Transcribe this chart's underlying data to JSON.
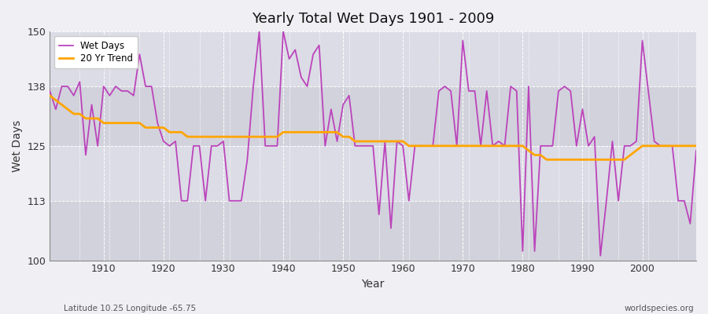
{
  "title": "Yearly Total Wet Days 1901 - 2009",
  "xlabel": "Year",
  "ylabel": "Wet Days",
  "footnote_left": "Latitude 10.25 Longitude -65.75",
  "footnote_right": "worldspecies.org",
  "ylim": [
    100,
    150
  ],
  "xlim": [
    1901,
    2009
  ],
  "yticks": [
    100,
    113,
    125,
    138,
    150
  ],
  "xticks": [
    1910,
    1920,
    1930,
    1940,
    1950,
    1960,
    1970,
    1980,
    1990,
    2000
  ],
  "wet_days_color": "#BB44BB",
  "trend_color": "#FFA500",
  "plot_bg_color": "#EAEAEE",
  "band_color_light": "#E0E0E8",
  "band_color_dark": "#D0D0DC",
  "fig_bg_color": "#F0F0F4",
  "grid_color": "#FFFFFF",
  "legend_labels": [
    "Wet Days",
    "20 Yr Trend"
  ],
  "years": [
    1901,
    1902,
    1903,
    1904,
    1905,
    1906,
    1907,
    1908,
    1909,
    1910,
    1911,
    1912,
    1913,
    1914,
    1915,
    1916,
    1917,
    1918,
    1919,
    1920,
    1921,
    1922,
    1923,
    1924,
    1925,
    1926,
    1927,
    1928,
    1929,
    1930,
    1931,
    1932,
    1933,
    1934,
    1935,
    1936,
    1937,
    1938,
    1939,
    1940,
    1941,
    1942,
    1943,
    1944,
    1945,
    1946,
    1947,
    1948,
    1949,
    1950,
    1951,
    1952,
    1953,
    1954,
    1955,
    1956,
    1957,
    1958,
    1959,
    1960,
    1961,
    1962,
    1963,
    1964,
    1965,
    1966,
    1967,
    1968,
    1969,
    1970,
    1971,
    1972,
    1973,
    1974,
    1975,
    1976,
    1977,
    1978,
    1979,
    1980,
    1981,
    1982,
    1983,
    1984,
    1985,
    1986,
    1987,
    1988,
    1989,
    1990,
    1991,
    1992,
    1993,
    1994,
    1995,
    1996,
    1997,
    1998,
    1999,
    2000,
    2001,
    2002,
    2003,
    2004,
    2005,
    2006,
    2007,
    2008,
    2009
  ],
  "wet_days": [
    137,
    133,
    138,
    138,
    136,
    139,
    123,
    134,
    125,
    138,
    136,
    138,
    137,
    137,
    136,
    145,
    138,
    138,
    130,
    126,
    125,
    126,
    113,
    113,
    125,
    125,
    113,
    125,
    125,
    126,
    113,
    113,
    113,
    122,
    138,
    150,
    125,
    125,
    125,
    150,
    144,
    146,
    140,
    138,
    145,
    147,
    125,
    133,
    126,
    134,
    136,
    125,
    125,
    125,
    125,
    110,
    126,
    107,
    126,
    125,
    113,
    125,
    125,
    125,
    125,
    137,
    138,
    137,
    125,
    148,
    137,
    137,
    125,
    137,
    125,
    126,
    125,
    138,
    137,
    102,
    138,
    102,
    125,
    125,
    125,
    137,
    138,
    137,
    125,
    133,
    125,
    127,
    101,
    113,
    126,
    113,
    125,
    125,
    126,
    148,
    137,
    126,
    125,
    125,
    125,
    113,
    113,
    108,
    124
  ],
  "trend": [
    136,
    135,
    134,
    133,
    132,
    132,
    131,
    131,
    131,
    130,
    130,
    130,
    130,
    130,
    130,
    130,
    129,
    129,
    129,
    129,
    128,
    128,
    128,
    127,
    127,
    127,
    127,
    127,
    127,
    127,
    127,
    127,
    127,
    127,
    127,
    127,
    127,
    127,
    127,
    128,
    128,
    128,
    128,
    128,
    128,
    128,
    128,
    128,
    128,
    127,
    127,
    126,
    126,
    126,
    126,
    126,
    126,
    126,
    126,
    126,
    125,
    125,
    125,
    125,
    125,
    125,
    125,
    125,
    125,
    125,
    125,
    125,
    125,
    125,
    125,
    125,
    125,
    125,
    125,
    125,
    124,
    123,
    123,
    122,
    122,
    122,
    122,
    122,
    122,
    122,
    122,
    122,
    122,
    122,
    122,
    122,
    122,
    123,
    124,
    125,
    125,
    125,
    125,
    125,
    125,
    125,
    125,
    125,
    125
  ]
}
